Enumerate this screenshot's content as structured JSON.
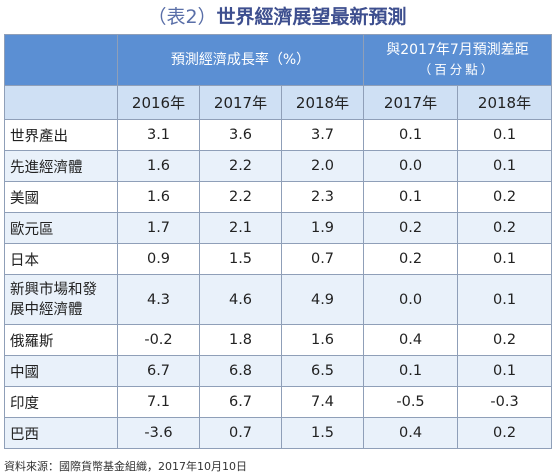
{
  "title": {
    "tag": "（表2）",
    "main": "世界經濟展望最新預測"
  },
  "header": {
    "group1": "預測經濟成長率（%）",
    "group2_line1": "與2017年7月預測差距",
    "group2_line2": "（百分點）",
    "years": [
      "2016年",
      "2017年",
      "2018年",
      "2017年",
      "2018年"
    ]
  },
  "rows": [
    {
      "label": "世界產出",
      "values": [
        "3.1",
        "3.6",
        "3.7",
        "0.1",
        "0.1"
      ]
    },
    {
      "label": "先進經濟體",
      "values": [
        "1.6",
        "2.2",
        "2.0",
        "0.0",
        "0.1"
      ]
    },
    {
      "label": "美國",
      "values": [
        "1.6",
        "2.2",
        "2.3",
        "0.1",
        "0.2"
      ]
    },
    {
      "label": "歐元區",
      "values": [
        "1.7",
        "2.1",
        "1.9",
        "0.2",
        "0.2"
      ]
    },
    {
      "label": "日本",
      "values": [
        "0.9",
        "1.5",
        "0.7",
        "0.2",
        "0.1"
      ]
    },
    {
      "label_line1": "新興市場和發",
      "label_line2": "展中經濟體",
      "values": [
        "4.3",
        "4.6",
        "4.9",
        "0.0",
        "0.1"
      ]
    },
    {
      "label": "俄羅斯",
      "values": [
        "-0.2",
        "1.8",
        "1.6",
        "0.4",
        "0.2"
      ]
    },
    {
      "label": "中國",
      "values": [
        "6.7",
        "6.8",
        "6.5",
        "0.1",
        "0.1"
      ]
    },
    {
      "label": "印度",
      "values": [
        "7.1",
        "6.7",
        "7.4",
        "-0.5",
        "-0.3"
      ]
    },
    {
      "label": "巴西",
      "values": [
        "-3.6",
        "0.7",
        "1.5",
        "0.4",
        "0.2"
      ]
    }
  ],
  "footnote": "資料來源：國際貨幣基金組織，2017年10月10日"
}
